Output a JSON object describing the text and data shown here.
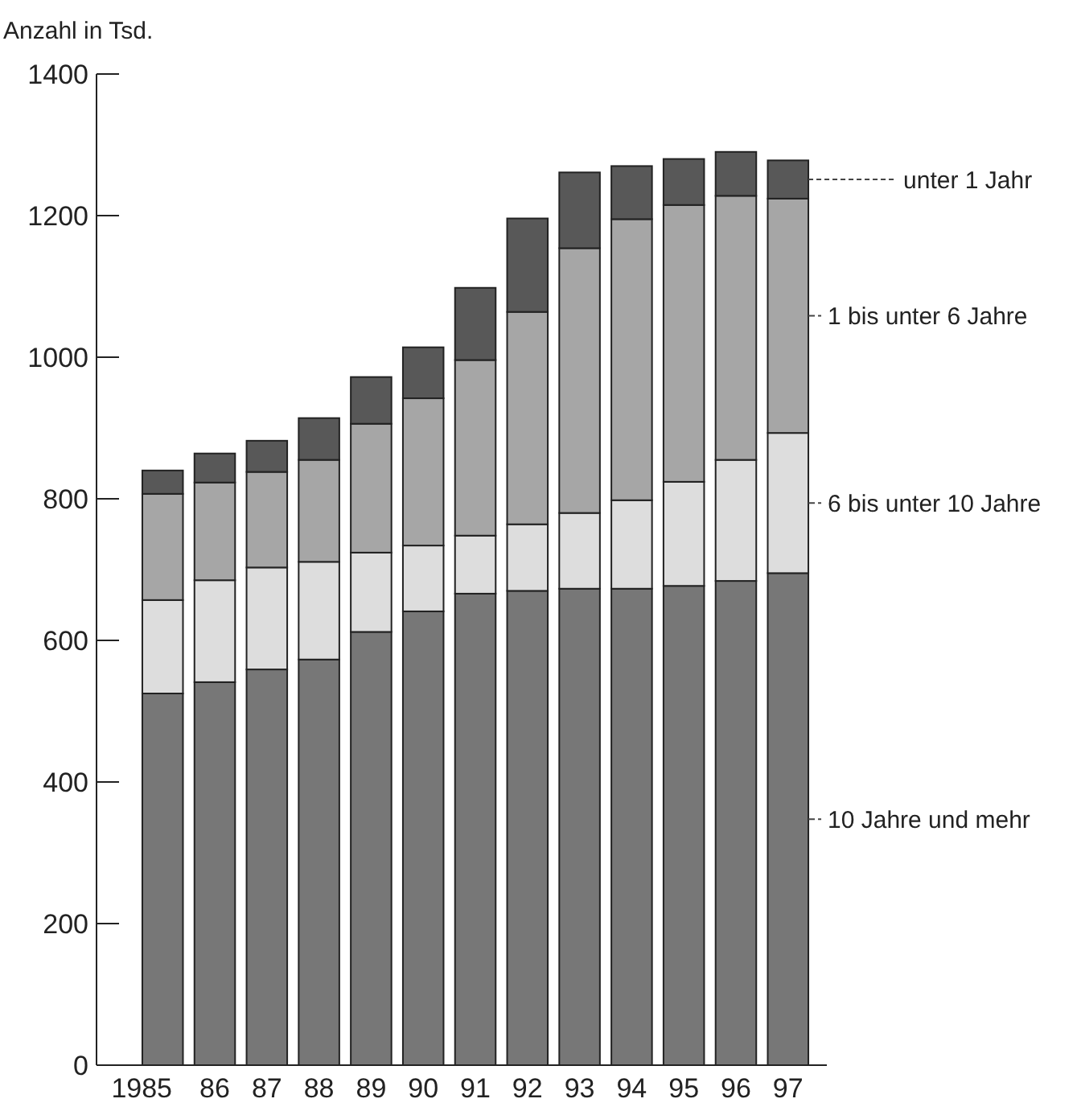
{
  "chart_data": {
    "type": "bar",
    "ylabel": "Anzahl in Tsd.",
    "categories": [
      "1985",
      "86",
      "87",
      "88",
      "89",
      "90",
      "91",
      "92",
      "93",
      "94",
      "95",
      "96",
      "97"
    ],
    "stacked": true,
    "legend": "right",
    "ylim": [
      0,
      1400
    ],
    "yticks": [
      0,
      200,
      400,
      600,
      800,
      1000,
      1200,
      1400
    ],
    "series": [
      {
        "name": "10 Jahre und mehr",
        "color": "#777777",
        "values": [
          525,
          541,
          559,
          573,
          612,
          641,
          666,
          670,
          673,
          673,
          677,
          684,
          695
        ]
      },
      {
        "name": "6 bis unter 10 Jahre",
        "color": "#dddddd",
        "values": [
          132,
          144,
          144,
          138,
          112,
          93,
          82,
          94,
          107,
          125,
          147,
          171,
          198
        ]
      },
      {
        "name": "1 bis unter 6 Jahre",
        "color": "#a6a6a6",
        "values": [
          150,
          138,
          135,
          144,
          182,
          208,
          248,
          300,
          374,
          397,
          391,
          373,
          331
        ]
      },
      {
        "name": "unter 1 Jahr",
        "color": "#585858",
        "values": [
          33,
          41,
          44,
          59,
          66,
          72,
          102,
          132,
          107,
          75,
          65,
          62,
          54
        ]
      }
    ]
  }
}
